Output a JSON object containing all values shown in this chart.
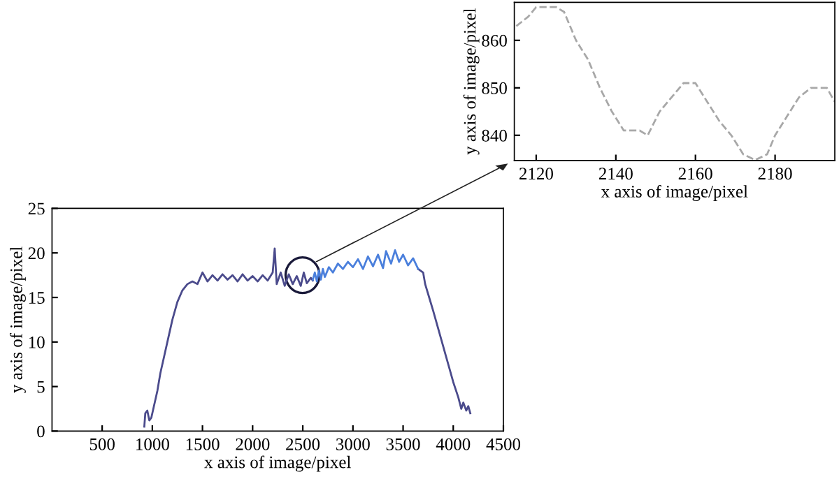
{
  "chart_data": [
    {
      "type": "line",
      "xlabel": "x axis of image/pixel",
      "ylabel": "y axis of image/pixel",
      "xlim": [
        0,
        4500
      ],
      "ylim": [
        0,
        25
      ],
      "xticks": [
        500,
        1000,
        1500,
        2000,
        2500,
        3000,
        3500,
        4000,
        4500
      ],
      "yticks": [
        0,
        5,
        10,
        15,
        20,
        25
      ],
      "grid": false,
      "series": [
        {
          "color": "#4b4b8c",
          "x": [
            920,
            930,
            950,
            970,
            990,
            1010,
            1050,
            1080,
            1120,
            1160,
            1200,
            1250,
            1300,
            1350,
            1400,
            1450,
            1500,
            1550,
            1600,
            1650,
            1700,
            1750,
            1800,
            1850,
            1900,
            1950,
            2000,
            2050,
            2100,
            2150,
            2200,
            2220,
            2240,
            2280,
            2320,
            2360,
            2400,
            2440,
            2480,
            2510,
            2540,
            2580,
            2600,
            3625,
            3650,
            3700,
            3720,
            3760,
            3800,
            3850,
            3900,
            3950,
            4000,
            4050,
            4080,
            4100,
            4130,
            4150,
            4170
          ],
          "values": [
            0.5,
            2.0,
            2.3,
            1.2,
            1.5,
            2.5,
            4.5,
            6.5,
            8.5,
            10.5,
            12.5,
            14.5,
            15.8,
            16.5,
            16.8,
            16.5,
            17.8,
            16.8,
            17.5,
            16.9,
            17.6,
            17.0,
            17.5,
            16.8,
            17.6,
            16.9,
            17.4,
            16.8,
            17.5,
            16.9,
            17.8,
            20.5,
            16.5,
            17.8,
            16.3,
            17.6,
            16.5,
            17.4,
            16.3,
            17.8,
            16.6,
            17.2,
            16.9,
            null,
            18.2,
            17.8,
            16.5,
            15.0,
            13.5,
            11.5,
            9.5,
            7.5,
            5.5,
            3.8,
            2.5,
            3.2,
            2.3,
            2.8,
            2.0
          ]
        },
        {
          "color": "#4a7fdc",
          "x": [
            2600,
            2620,
            2640,
            2660,
            2680,
            2700,
            2720,
            2760,
            2800,
            2850,
            2900,
            2950,
            3000,
            3050,
            3100,
            3150,
            3200,
            3250,
            3300,
            3330,
            3380,
            3420,
            3460,
            3500,
            3550,
            3600,
            3650
          ],
          "values": [
            17.0,
            17.8,
            16.8,
            18.0,
            17.0,
            18.2,
            17.3,
            18.4,
            17.8,
            18.8,
            18.2,
            19.0,
            18.4,
            19.3,
            18.2,
            19.6,
            18.5,
            19.8,
            18.3,
            20.2,
            18.8,
            20.3,
            19.0,
            19.8,
            18.6,
            19.4,
            18.2
          ]
        }
      ]
    },
    {
      "type": "line",
      "xlabel": "x axis of image/pixel",
      "ylabel": "y axis of image/pixel",
      "xlim": [
        2114.5,
        2195
      ],
      "ylim": [
        834.7,
        868
      ],
      "xticks": [
        2120,
        2140,
        2160,
        2180
      ],
      "yticks": [
        840,
        850,
        860
      ],
      "grid": false,
      "line_style": "dashed",
      "series": [
        {
          "color": "#a8a8a8",
          "x": [
            2115,
            2118,
            2120,
            2125,
            2127,
            2130,
            2133,
            2136,
            2139,
            2142,
            2146,
            2148,
            2151,
            2154,
            2157,
            2160,
            2163,
            2166,
            2169,
            2172,
            2175,
            2178,
            2180,
            2183,
            2186,
            2189,
            2193,
            2195
          ],
          "values": [
            863,
            865,
            867,
            867,
            866,
            860,
            856,
            850,
            845,
            841,
            841,
            840,
            845,
            848,
            851,
            851,
            847,
            843,
            840,
            836,
            834.8,
            836,
            840,
            844,
            848,
            850,
            850,
            847
          ]
        }
      ]
    }
  ]
}
